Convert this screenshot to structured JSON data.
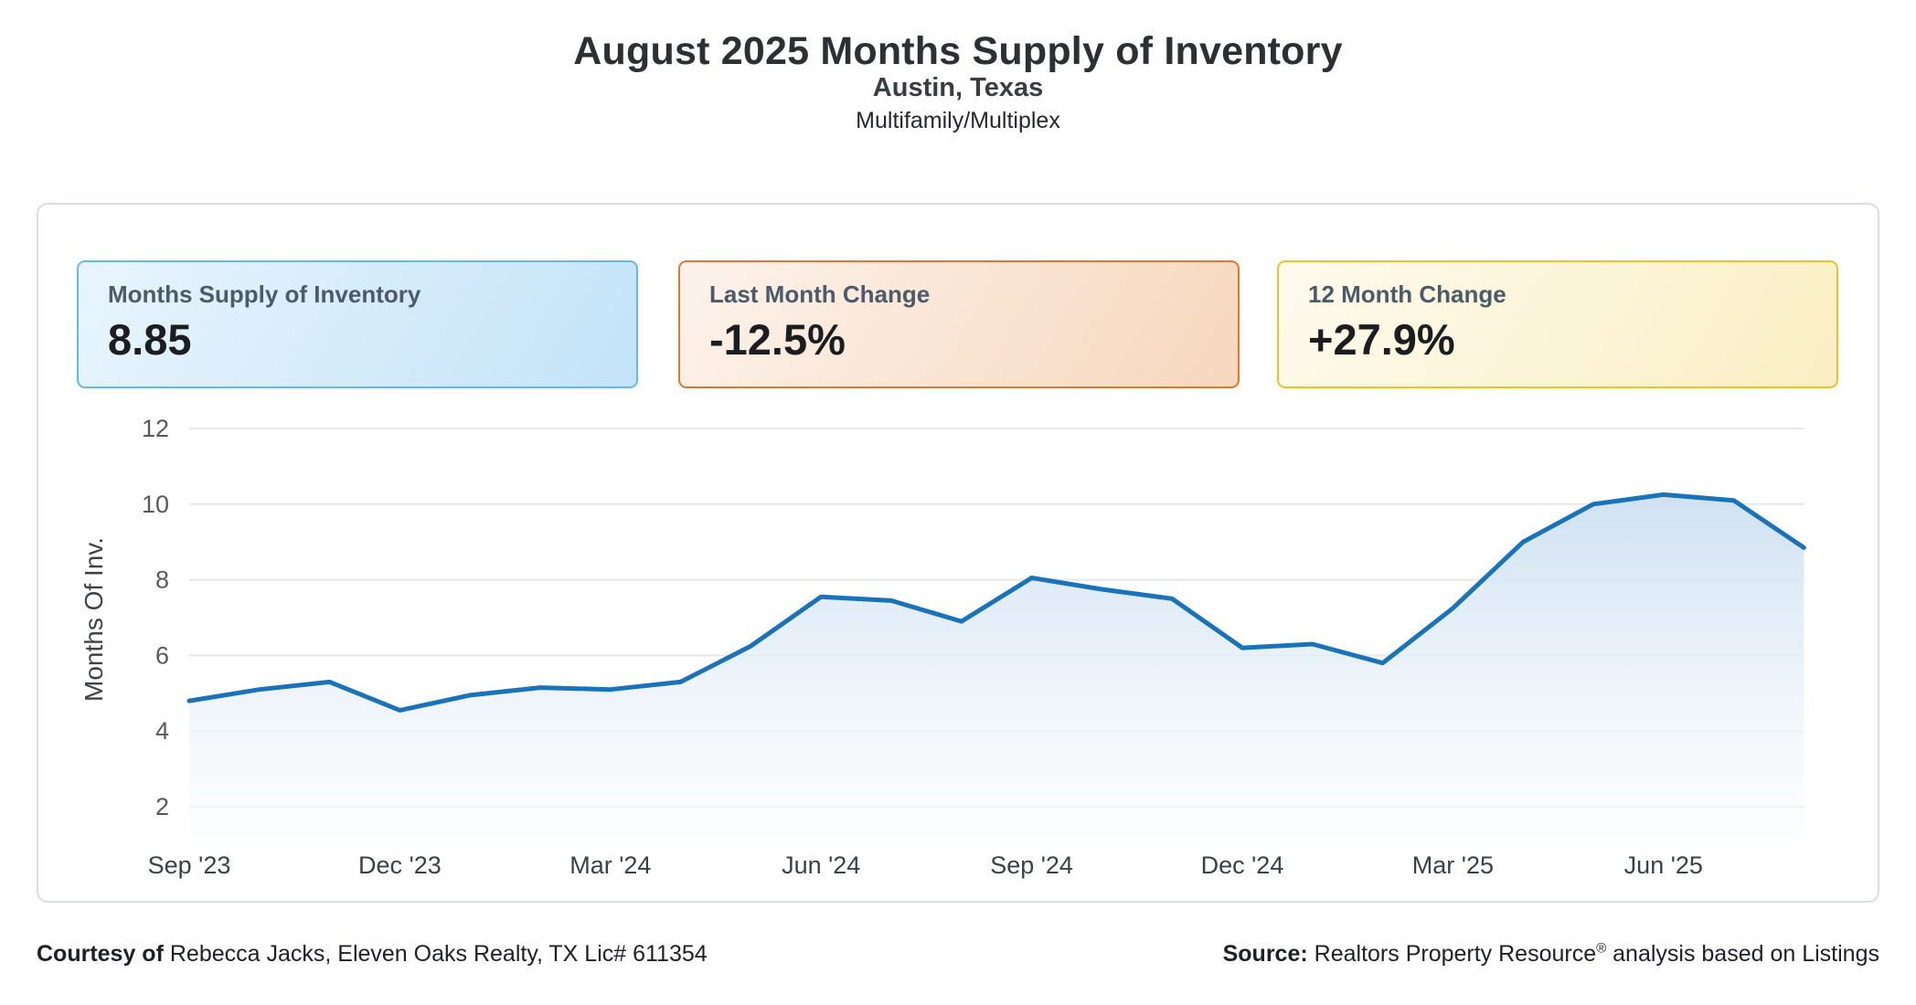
{
  "header": {
    "title": "August 2025 Months Supply of Inventory",
    "subtitle": "Austin, Texas",
    "property_type": "Multifamily/Multiplex"
  },
  "stat_cards": [
    {
      "label": "Months Supply of Inventory",
      "value": "8.85",
      "border_color": "#67b7e8",
      "bg_from": "#e9f5fd",
      "bg_to": "#c3e3f8"
    },
    {
      "label": "Last Month Change",
      "value": "-12.5%",
      "border_color": "#e1762f",
      "bg_from": "#fdf3ec",
      "bg_to": "#f6d7bd"
    },
    {
      "label": "12 Month Change",
      "value": "+27.9%",
      "border_color": "#ecc12d",
      "bg_from": "#fefbee",
      "bg_to": "#faeec3"
    }
  ],
  "footer": {
    "courtesy_label": "Courtesy of",
    "courtesy_text": "Rebecca Jacks, Eleven Oaks Realty, TX Lic# 611354",
    "source_label": "Source:",
    "source_name": "Realtors Property Resource",
    "source_reg": "®",
    "source_rest": "analysis based on Listings"
  },
  "chart_data": {
    "type": "area",
    "title": "Months Supply of Inventory trend, Sep 2023 - Aug 2025",
    "x": [
      "Sep '23",
      "Oct '23",
      "Nov '23",
      "Dec '23",
      "Jan '24",
      "Feb '24",
      "Mar '24",
      "Apr '24",
      "May '24",
      "Jun '24",
      "Jul '24",
      "Aug '24",
      "Sep '24",
      "Oct '24",
      "Nov '24",
      "Dec '24",
      "Jan '25",
      "Feb '25",
      "Mar '25",
      "Apr '25",
      "May '25",
      "Jun '25",
      "Jul '25",
      "Aug '25"
    ],
    "values": [
      4.8,
      5.1,
      5.3,
      4.55,
      4.95,
      5.15,
      5.1,
      5.3,
      6.25,
      7.55,
      7.45,
      6.9,
      8.05,
      7.75,
      7.5,
      6.2,
      6.3,
      5.8,
      7.25,
      9.0,
      10.0,
      10.25,
      10.1,
      8.85
    ],
    "xtick_labels": [
      "Sep '23",
      "Dec '23",
      "Mar '24",
      "Jun '24",
      "Sep '24",
      "Dec '24",
      "Mar '25",
      "Jun '25"
    ],
    "xtick_indices": [
      0,
      3,
      6,
      9,
      12,
      15,
      18,
      21
    ],
    "ylabel": "Months Of Inv.",
    "yticks": [
      2,
      4,
      6,
      8,
      10,
      12
    ],
    "ylim": [
      2,
      12
    ],
    "grid": true,
    "legend": "none",
    "line_color": "#1a73b8",
    "area_fill_top": "#cde0f1",
    "area_fill_bottom": "#fbfdfe",
    "grid_color": "#e8e8e8",
    "tick_color": "#58595b",
    "axis_title_color": "#3f4144"
  }
}
